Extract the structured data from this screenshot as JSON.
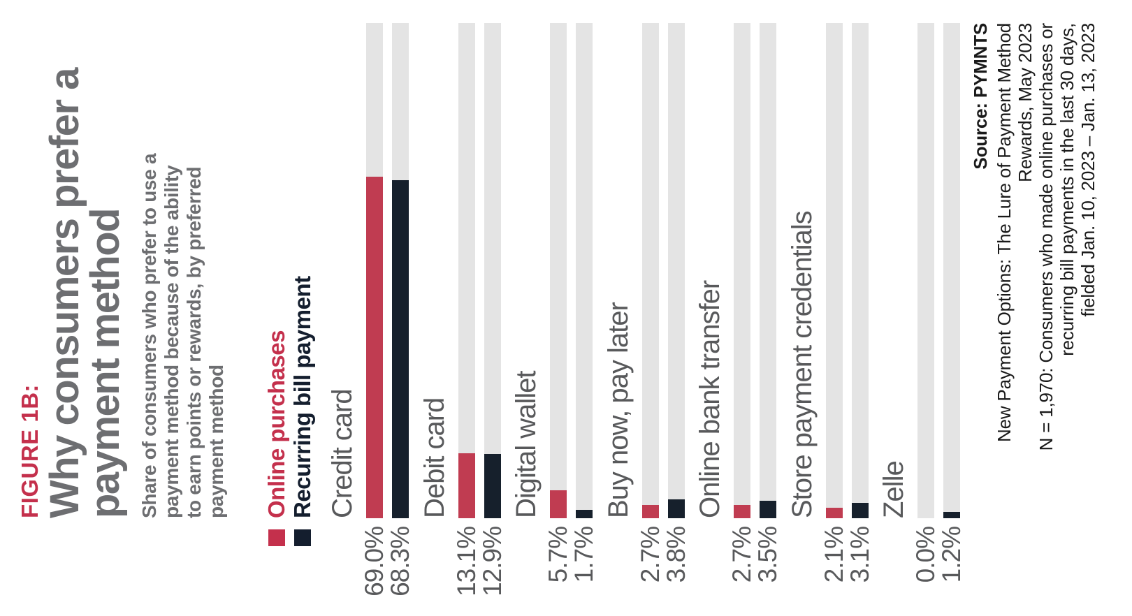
{
  "figure": {
    "label": "FIGURE 1B:",
    "title_lines": [
      "Why consumers prefer a",
      "payment method"
    ],
    "subtitle_lines": [
      "Share of consumers who prefer to use a",
      "payment method because of the ability",
      "to earn points or rewards, by preferred",
      "payment method"
    ]
  },
  "legend": {
    "items": [
      {
        "label": "Online purchases",
        "color": "#C4304C"
      },
      {
        "label": "Recurring bill payment",
        "color": "#141E2E"
      }
    ]
  },
  "chart_data": {
    "type": "bar",
    "orientation": "horizontal, whole figure rotated 90deg counterclockwise",
    "categories": [
      "Credit card",
      "Debit card",
      "Digital wallet",
      "Buy now, pay later",
      "Online bank transfer",
      "Store payment credentials",
      "Zelle"
    ],
    "series": [
      {
        "name": "Online purchases",
        "color": "#C03C51",
        "values": [
          69.0,
          13.1,
          5.7,
          2.7,
          2.7,
          2.1,
          0.0
        ],
        "labels": [
          "69.0%",
          "13.1%",
          "5.7%",
          "2.7%",
          "2.7%",
          "2.1%",
          "0.0%"
        ]
      },
      {
        "name": "Recurring bill payment",
        "color": "#16202C",
        "values": [
          68.3,
          12.9,
          1.7,
          3.8,
          3.5,
          3.1,
          1.2
        ],
        "labels": [
          "68.3%",
          "12.9%",
          "1.7%",
          "3.8%",
          "3.5%",
          "3.1%",
          "1.2%"
        ]
      }
    ],
    "xlim": [
      0,
      100
    ],
    "track_full_scale": 100,
    "track_color": "#E4E4E4",
    "grid": false,
    "legend_position": "below subtitle",
    "value_label_position": "before bar start"
  },
  "source": {
    "lines": [
      "Source: PYMNTS",
      "New Payment Options: The Lure of Payment Method",
      "Rewards, May 2023",
      "N = 1,970: Consumers who made online purchases or",
      "recurring bill payments in the last 30 days,",
      "fielded Jan. 10, 2023 – Jan. 13, 2023"
    ]
  },
  "colors": {
    "accent_red": "#C4304C",
    "bar_red": "#C03C51",
    "bar_navy": "#16202C",
    "legend_navy": "#141E2E",
    "title_gray": "#6D6E71",
    "label_gray": "#58595B",
    "track_gray": "#E4E4E4",
    "source_black": "#1A1A1A",
    "background": "#FFFFFF"
  }
}
